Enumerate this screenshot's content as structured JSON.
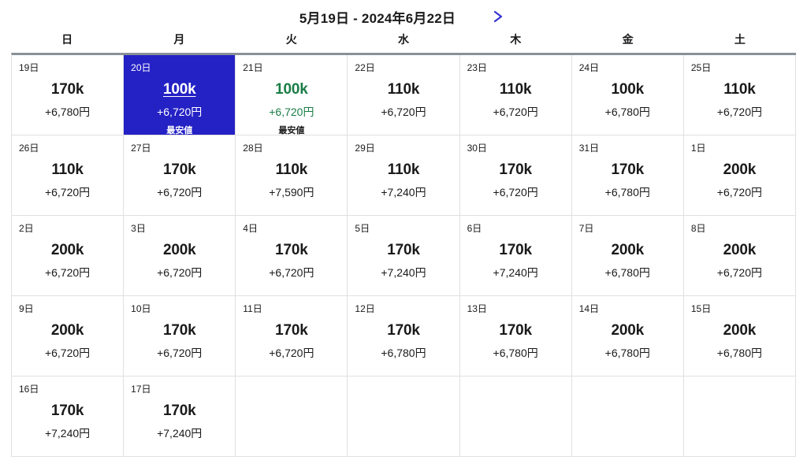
{
  "header": {
    "title": "5月19日 - 2024年6月22日",
    "next_icon": "chevron-right-icon"
  },
  "colors": {
    "selected_bg": "#2421c5",
    "selected_text": "#ffffff",
    "lowest_green": "#1a7d46",
    "link_blue": "#3533d1",
    "grid_border": "#e0e0e0",
    "grid_top_border": "#8a9097"
  },
  "calendar": {
    "weekdays": [
      "日",
      "月",
      "火",
      "水",
      "木",
      "金",
      "土"
    ],
    "weeks": [
      [
        {
          "day": "19日",
          "miles": "170k",
          "price": "+6,780円"
        },
        {
          "day": "20日",
          "miles": "100k",
          "price": "+6,720円",
          "badge": "最安値",
          "state": "selected"
        },
        {
          "day": "21日",
          "miles": "100k",
          "price": "+6,720円",
          "badge": "最安値",
          "state": "lowest"
        },
        {
          "day": "22日",
          "miles": "110k",
          "price": "+6,720円"
        },
        {
          "day": "23日",
          "miles": "110k",
          "price": "+6,720円"
        },
        {
          "day": "24日",
          "miles": "100k",
          "price": "+6,780円"
        },
        {
          "day": "25日",
          "miles": "110k",
          "price": "+6,720円"
        }
      ],
      [
        {
          "day": "26日",
          "miles": "110k",
          "price": "+6,720円"
        },
        {
          "day": "27日",
          "miles": "170k",
          "price": "+6,720円"
        },
        {
          "day": "28日",
          "miles": "110k",
          "price": "+7,590円"
        },
        {
          "day": "29日",
          "miles": "110k",
          "price": "+7,240円"
        },
        {
          "day": "30日",
          "miles": "170k",
          "price": "+6,720円"
        },
        {
          "day": "31日",
          "miles": "170k",
          "price": "+6,780円"
        },
        {
          "day": "1日",
          "miles": "200k",
          "price": "+6,720円"
        }
      ],
      [
        {
          "day": "2日",
          "miles": "200k",
          "price": "+6,720円"
        },
        {
          "day": "3日",
          "miles": "200k",
          "price": "+6,720円"
        },
        {
          "day": "4日",
          "miles": "170k",
          "price": "+6,720円"
        },
        {
          "day": "5日",
          "miles": "170k",
          "price": "+7,240円"
        },
        {
          "day": "6日",
          "miles": "170k",
          "price": "+7,240円"
        },
        {
          "day": "7日",
          "miles": "200k",
          "price": "+6,780円"
        },
        {
          "day": "8日",
          "miles": "200k",
          "price": "+6,720円"
        }
      ],
      [
        {
          "day": "9日",
          "miles": "200k",
          "price": "+6,720円"
        },
        {
          "day": "10日",
          "miles": "170k",
          "price": "+6,720円"
        },
        {
          "day": "11日",
          "miles": "170k",
          "price": "+6,720円"
        },
        {
          "day": "12日",
          "miles": "170k",
          "price": "+6,780円"
        },
        {
          "day": "13日",
          "miles": "170k",
          "price": "+6,780円"
        },
        {
          "day": "14日",
          "miles": "200k",
          "price": "+6,780円"
        },
        {
          "day": "15日",
          "miles": "200k",
          "price": "+6,780円"
        }
      ],
      [
        {
          "day": "16日",
          "miles": "170k",
          "price": "+7,240円"
        },
        {
          "day": "17日",
          "miles": "170k",
          "price": "+7,240円"
        },
        {},
        {},
        {},
        {},
        {}
      ]
    ]
  }
}
